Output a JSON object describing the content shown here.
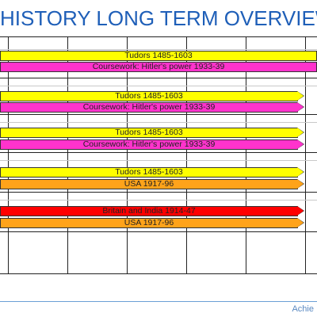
{
  "page": {
    "title": "HISTORY LONG TERM OVERVIEW",
    "footer_text": "Achie"
  },
  "colors": {
    "title": "#1f5fb8",
    "yellow": "#ffff00",
    "pink": "#ff33cc",
    "orange": "#ffa31a",
    "red": "#ff0000",
    "grid": "#222222"
  },
  "rows": [
    {
      "bars": [
        {
          "label": "Tudors 1485-1603",
          "color": "#ffff00"
        },
        {
          "label": "Coursework: Hitler's power 1933-39",
          "color": "#ff33cc"
        }
      ]
    },
    {
      "bars": [
        {
          "label": "Tudors 1485-1603",
          "color": "#ffff00"
        },
        {
          "label": "Coursework: Hitler's power 1933-39",
          "color": "#ff33cc"
        }
      ]
    },
    {
      "bars": [
        {
          "label": "Tudors 1485-1603",
          "color": "#ffff00"
        },
        {
          "label": "Coursework: Hitler's power 1933-39",
          "color": "#ff33cc"
        }
      ]
    },
    {
      "bars": [
        {
          "label": "Tudors 1485-1603",
          "color": "#ffff00"
        },
        {
          "label": "USA 1917-96",
          "color": "#ffa31a"
        }
      ]
    },
    {
      "bars": [
        {
          "label": "Britain and India 1914-47",
          "color": "#ff0000"
        },
        {
          "label": "USA 1917-96",
          "color": "#ffa31a"
        }
      ]
    }
  ]
}
